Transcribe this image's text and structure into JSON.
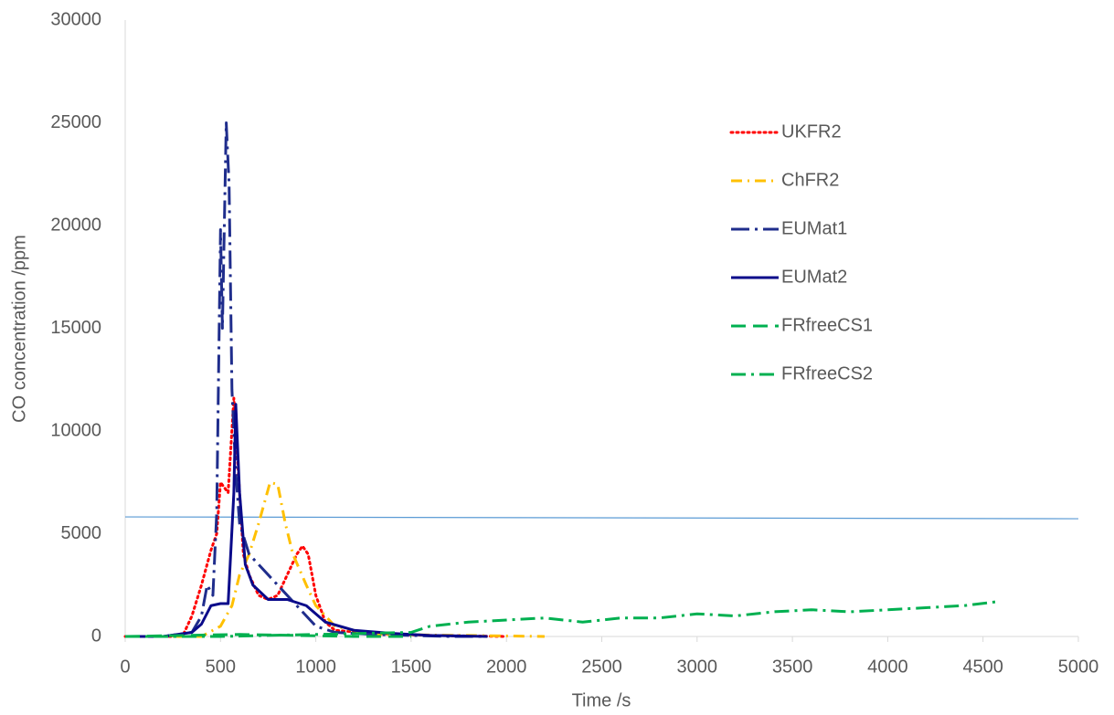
{
  "chart_data": {
    "type": "line",
    "xlabel": "Time /s",
    "ylabel": "CO concentration /ppm",
    "xlim": [
      0,
      5000
    ],
    "xticks": [
      0,
      500,
      1000,
      1500,
      2000,
      2500,
      3000,
      3500,
      4000,
      4500,
      5000
    ],
    "ylim": [
      0,
      30000
    ],
    "yticks": [
      0,
      5000,
      10000,
      15000,
      20000,
      25000,
      30000
    ],
    "grid": false,
    "legend": "upper right",
    "series": [
      {
        "name": "UKFR2",
        "color": "#ff0000",
        "dash": "2,4",
        "x": [
          0,
          300,
          350,
          400,
          450,
          480,
          500,
          540,
          570,
          600,
          620,
          650,
          700,
          750,
          800,
          850,
          900,
          930,
          960,
          1000,
          1050,
          1100,
          1300,
          1600,
          2000
        ],
        "values": [
          0,
          0,
          1000,
          2500,
          4200,
          5000,
          7500,
          7000,
          11600,
          7000,
          4000,
          3000,
          2000,
          1800,
          2000,
          3000,
          4000,
          4400,
          4000,
          2000,
          700,
          300,
          150,
          50,
          0
        ]
      },
      {
        "name": "ChFR2",
        "color": "#ffc000",
        "dash": "12,6,2,6",
        "x": [
          0,
          400,
          500,
          560,
          600,
          650,
          700,
          760,
          800,
          840,
          880,
          950,
          1000,
          1100,
          1300,
          1800,
          2200
        ],
        "values": [
          0,
          0,
          500,
          1500,
          3000,
          4000,
          5500,
          7500,
          7400,
          5500,
          4000,
          2500,
          1500,
          500,
          100,
          50,
          0
        ]
      },
      {
        "name": "EUMat1",
        "color": "#1f2d8c",
        "dash": "20,6,3,6",
        "x": [
          0,
          200,
          350,
          400,
          430,
          460,
          480,
          500,
          510,
          530,
          545,
          560,
          580,
          600,
          650,
          700,
          800,
          900,
          1000,
          1100,
          1300,
          1700,
          1900
        ],
        "values": [
          0,
          0,
          200,
          1000,
          2500,
          2000,
          6000,
          19800,
          15000,
          25000,
          22000,
          12000,
          8000,
          5500,
          4000,
          3500,
          2500,
          1500,
          500,
          200,
          100,
          0,
          0
        ]
      },
      {
        "name": "EUMat2",
        "color": "#0a0a8a",
        "dash": "none",
        "x": [
          0,
          200,
          350,
          400,
          450,
          500,
          540,
          570,
          580,
          600,
          630,
          670,
          750,
          850,
          950,
          1050,
          1200,
          1400,
          1600,
          1900
        ],
        "values": [
          0,
          0,
          200,
          600,
          1500,
          1600,
          1600,
          7000,
          11300,
          7000,
          3500,
          2500,
          1800,
          1800,
          1500,
          700,
          300,
          150,
          50,
          0
        ]
      },
      {
        "name": "FRfreeCS1",
        "color": "#00b050",
        "dash": "16,8",
        "x": [
          0,
          300,
          600,
          900,
          1200,
          1500
        ],
        "values": [
          0,
          50,
          100,
          50,
          0,
          0
        ]
      },
      {
        "name": "FRfreeCS2",
        "color": "#00b050",
        "dash": "16,6,3,6",
        "x": [
          0,
          500,
          1000,
          1500,
          1600,
          1800,
          2000,
          2200,
          2400,
          2600,
          2800,
          3000,
          3200,
          3400,
          3600,
          3800,
          4000,
          4200,
          4400,
          4580
        ],
        "values": [
          0,
          0,
          100,
          200,
          500,
          700,
          800,
          900,
          700,
          900,
          900,
          1100,
          1000,
          1200,
          1300,
          1200,
          1300,
          1400,
          1500,
          1700
        ]
      }
    ],
    "hline": {
      "color": "#5b9bd5",
      "x": [
        0,
        5000
      ],
      "values": [
        5820,
        5730
      ]
    }
  }
}
